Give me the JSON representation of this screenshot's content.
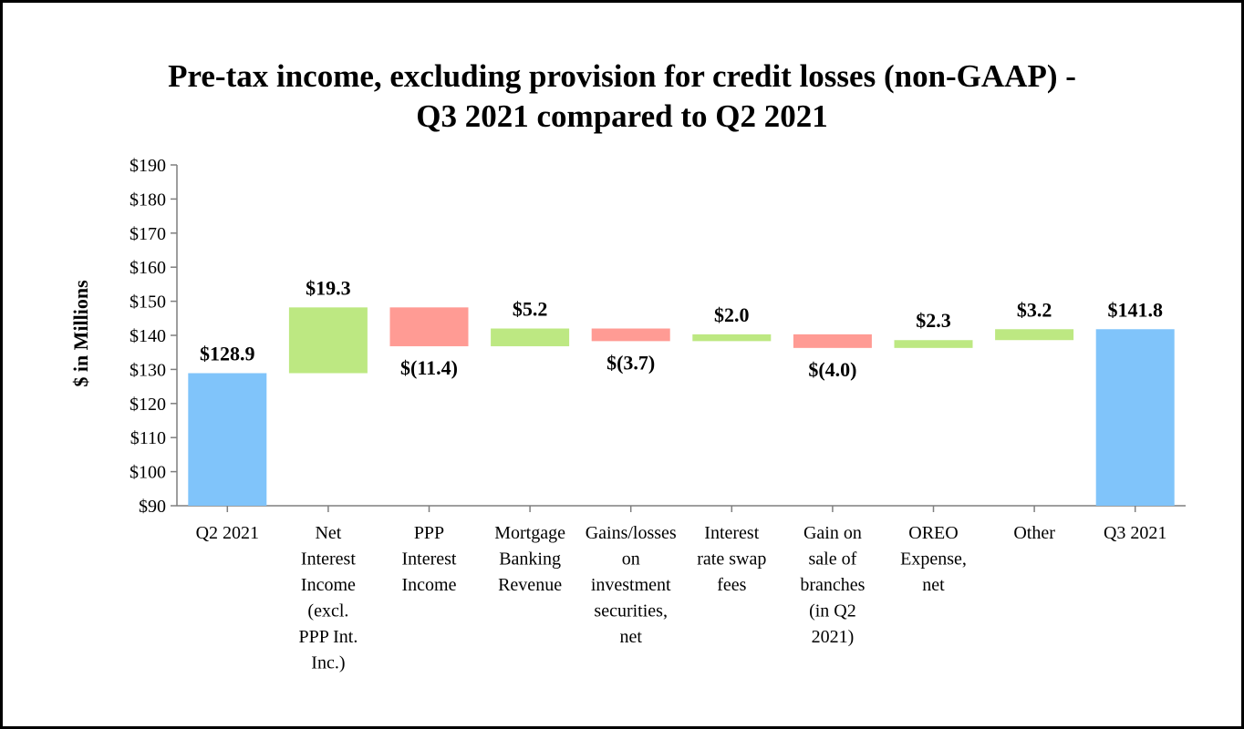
{
  "chart_data": {
    "type": "bar",
    "subtype": "waterfall",
    "title_lines": [
      "Pre-tax income, excluding provision for credit losses (non-GAAP) -",
      "Q3 2021 compared to Q2 2021"
    ],
    "ylabel": "$ in Millions",
    "ylim": [
      90,
      190
    ],
    "yticks": [
      "$90",
      "$100",
      "$110",
      "$120",
      "$130",
      "$140",
      "$150",
      "$160",
      "$170",
      "$180",
      "$190"
    ],
    "grid": false,
    "legend": "none",
    "colors": {
      "total": "#80C4FA",
      "increase": "#BDE882",
      "decrease": "#FF9B94"
    },
    "bars": [
      {
        "category_lines": [
          "Q2 2021"
        ],
        "kind": "total",
        "start": 90,
        "end": 128.9,
        "label": "$128.9"
      },
      {
        "category_lines": [
          "Net",
          "Interest",
          "Income",
          "(excl.",
          "PPP Int.",
          "Inc.)"
        ],
        "kind": "increase",
        "start": 128.9,
        "end": 148.2,
        "label": "$19.3"
      },
      {
        "category_lines": [
          "PPP",
          "Interest",
          "Income"
        ],
        "kind": "decrease",
        "start": 148.2,
        "end": 136.8,
        "label": "$(11.4)"
      },
      {
        "category_lines": [
          "Mortgage",
          "Banking",
          "Revenue"
        ],
        "kind": "increase",
        "start": 136.8,
        "end": 142.0,
        "label": "$5.2"
      },
      {
        "category_lines": [
          "Gains/losses",
          "on",
          "investment",
          "securities,",
          "net"
        ],
        "kind": "decrease",
        "start": 142.0,
        "end": 138.3,
        "label": "$(3.7)"
      },
      {
        "category_lines": [
          "Interest",
          "rate swap",
          "fees"
        ],
        "kind": "increase",
        "start": 138.3,
        "end": 140.3,
        "label": "$2.0"
      },
      {
        "category_lines": [
          "Gain on",
          "sale of",
          "branches",
          "(in Q2",
          "2021)"
        ],
        "kind": "decrease",
        "start": 140.3,
        "end": 136.3,
        "label": "$(4.0)"
      },
      {
        "category_lines": [
          "OREO",
          "Expense,",
          "net"
        ],
        "kind": "increase",
        "start": 136.3,
        "end": 138.6,
        "label": "$2.3"
      },
      {
        "category_lines": [
          "Other"
        ],
        "kind": "increase",
        "start": 138.6,
        "end": 141.8,
        "label": "$3.2"
      },
      {
        "category_lines": [
          "Q3 2021"
        ],
        "kind": "total",
        "start": 90,
        "end": 141.8,
        "label": "$141.8"
      }
    ]
  }
}
